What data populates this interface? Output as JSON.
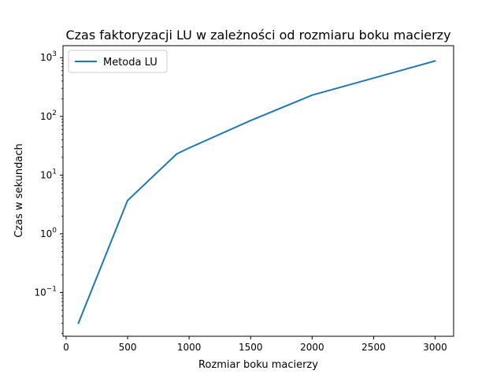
{
  "chart_data": {
    "type": "line",
    "title": "Czas faktoryzacji LU w zależności od rozmiaru boku macierzy",
    "xlabel": "Rozmiar boku macierzy",
    "ylabel": "Czas w sekundach",
    "xlim": [
      -25,
      3150
    ],
    "ylim": [
      0.018,
      1600
    ],
    "yscale": "log",
    "grid": false,
    "legend_position": "upper-left",
    "x_ticks": [
      0,
      500,
      1000,
      1500,
      2000,
      2500,
      3000
    ],
    "x_tick_labels": [
      "0",
      "500",
      "1000",
      "1500",
      "2000",
      "2500",
      "3000"
    ],
    "y_ticks": [
      {
        "value": 0.1,
        "base": "10",
        "exp": "−1"
      },
      {
        "value": 1,
        "base": "10",
        "exp": "0"
      },
      {
        "value": 10,
        "base": "10",
        "exp": "1"
      },
      {
        "value": 100,
        "base": "10",
        "exp": "2"
      },
      {
        "value": 1000,
        "base": "10",
        "exp": "3"
      }
    ],
    "series": [
      {
        "name": "Metoda LU",
        "color": "#1f77b4",
        "x": [
          100,
          500,
          900,
          1000,
          1500,
          2000,
          3000
        ],
        "y": [
          0.03,
          3.7,
          23,
          29,
          85,
          230,
          880
        ]
      }
    ]
  }
}
